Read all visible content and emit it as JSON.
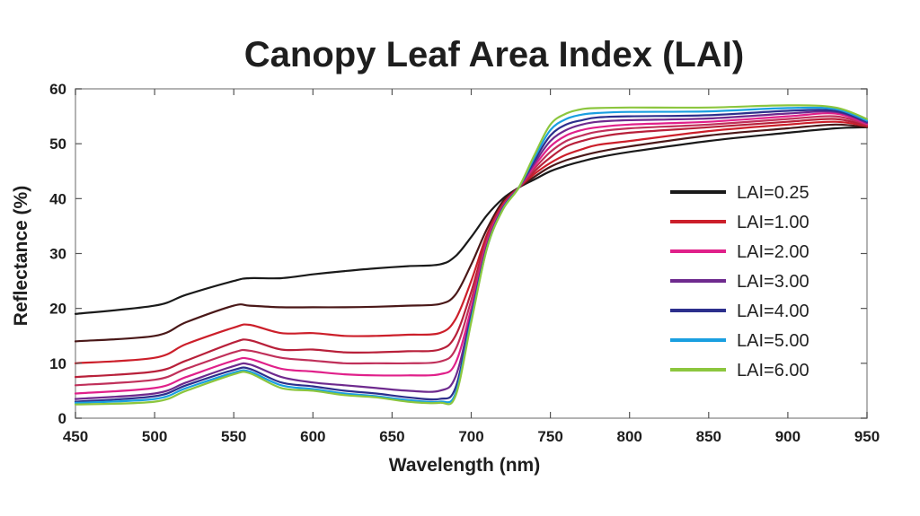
{
  "chart_data": {
    "type": "line",
    "title": "Canopy Leaf Area Index (LAI)",
    "xlabel": "Wavelength (nm)",
    "ylabel": "Reflectance (%)",
    "xlim": [
      450,
      950
    ],
    "ylim": [
      0,
      60
    ],
    "xticks": [
      450,
      500,
      550,
      600,
      650,
      700,
      750,
      800,
      850,
      900,
      950
    ],
    "yticks": [
      0,
      10,
      20,
      30,
      40,
      50,
      60
    ],
    "grid": false,
    "legend_position": "right",
    "x": [
      450,
      500,
      520,
      550,
      560,
      580,
      600,
      620,
      640,
      660,
      680,
      690,
      700,
      710,
      720,
      730,
      740,
      750,
      760,
      770,
      780,
      800,
      850,
      900,
      930,
      950
    ],
    "series": [
      {
        "name": "LAI=0.25",
        "legend": true,
        "color": "#1a1a1a",
        "values": [
          19.0,
          20.5,
          22.5,
          25.0,
          25.5,
          25.5,
          26.2,
          26.8,
          27.3,
          27.7,
          28.0,
          29.5,
          33.0,
          37.0,
          40.0,
          42.0,
          43.5,
          45.0,
          46.0,
          46.8,
          47.5,
          48.5,
          50.5,
          52.0,
          52.8,
          53.0
        ]
      },
      {
        "name": "",
        "legend": false,
        "color": "#4a1818",
        "values": [
          14.0,
          15.0,
          17.5,
          20.5,
          20.5,
          20.2,
          20.2,
          20.2,
          20.3,
          20.5,
          20.8,
          22.5,
          28.0,
          34.5,
          39.5,
          42.0,
          44.0,
          45.8,
          47.0,
          47.8,
          48.5,
          49.5,
          51.5,
          52.8,
          53.5,
          53.0
        ]
      },
      {
        "name": "LAI=1.00",
        "legend": true,
        "color": "#cc1f2a",
        "values": [
          10.0,
          11.0,
          13.5,
          16.5,
          17.0,
          15.5,
          15.5,
          15.0,
          15.0,
          15.2,
          15.5,
          18.0,
          25.0,
          33.5,
          39.0,
          42.0,
          44.5,
          46.5,
          48.0,
          49.0,
          49.8,
          50.5,
          52.3,
          53.5,
          54.0,
          53.2
        ]
      },
      {
        "name": "",
        "legend": false,
        "color": "#b8203a",
        "values": [
          7.5,
          8.5,
          10.5,
          13.8,
          14.2,
          12.5,
          12.5,
          12.0,
          12.0,
          12.2,
          12.5,
          15.0,
          23.0,
          33.0,
          38.8,
          42.0,
          45.0,
          47.5,
          49.5,
          50.5,
          51.2,
          52.0,
          53.0,
          54.0,
          54.5,
          53.3
        ]
      },
      {
        "name": "",
        "legend": false,
        "color": "#c0305a",
        "values": [
          6.0,
          7.0,
          9.0,
          12.0,
          12.3,
          11.0,
          10.5,
          10.0,
          10.0,
          10.0,
          10.3,
          12.5,
          21.5,
          32.5,
          38.6,
          42.0,
          45.5,
          48.5,
          50.5,
          51.5,
          52.2,
          52.8,
          53.5,
          54.5,
          55.0,
          53.5
        ]
      },
      {
        "name": "LAI=2.00",
        "legend": true,
        "color": "#e0208a",
        "values": [
          4.5,
          5.5,
          7.5,
          10.5,
          10.8,
          9.0,
          8.5,
          8.0,
          7.8,
          7.8,
          8.0,
          10.0,
          20.0,
          32.0,
          38.5,
          42.0,
          46.0,
          49.5,
          51.5,
          52.5,
          53.0,
          53.5,
          54.0,
          55.0,
          55.5,
          53.6
        ]
      },
      {
        "name": "LAI=3.00",
        "legend": true,
        "color": "#6e2a8e",
        "values": [
          3.5,
          4.5,
          6.5,
          9.5,
          9.8,
          7.5,
          6.5,
          6.0,
          5.5,
          5.0,
          5.0,
          7.5,
          19.0,
          31.5,
          38.3,
          42.0,
          46.5,
          50.5,
          52.5,
          53.5,
          54.0,
          54.3,
          54.6,
          55.5,
          55.8,
          53.8
        ]
      },
      {
        "name": "LAI=4.00",
        "legend": true,
        "color": "#2c2f8c",
        "values": [
          3.0,
          4.0,
          6.0,
          8.8,
          9.0,
          6.5,
          5.8,
          5.0,
          4.5,
          3.8,
          3.5,
          5.5,
          18.5,
          31.2,
          38.2,
          42.0,
          47.0,
          51.5,
          53.5,
          54.3,
          54.8,
          55.0,
          55.2,
          56.0,
          56.0,
          54.0
        ]
      },
      {
        "name": "LAI=5.00",
        "legend": true,
        "color": "#1a9fe0",
        "values": [
          2.8,
          3.5,
          5.5,
          8.3,
          8.5,
          6.0,
          5.3,
          4.5,
          4.0,
          3.3,
          3.0,
          4.5,
          18.0,
          31.0,
          38.1,
          42.0,
          47.5,
          52.5,
          54.5,
          55.3,
          55.6,
          55.8,
          55.9,
          56.5,
          56.3,
          54.2
        ]
      },
      {
        "name": "LAI=6.00",
        "legend": true,
        "color": "#8cc63e",
        "values": [
          2.5,
          3.0,
          5.0,
          8.0,
          8.2,
          5.5,
          5.0,
          4.2,
          3.8,
          3.0,
          2.8,
          4.0,
          17.5,
          31.0,
          38.0,
          42.0,
          48.0,
          53.5,
          55.5,
          56.3,
          56.5,
          56.6,
          56.6,
          57.0,
          56.6,
          54.5
        ]
      }
    ]
  }
}
